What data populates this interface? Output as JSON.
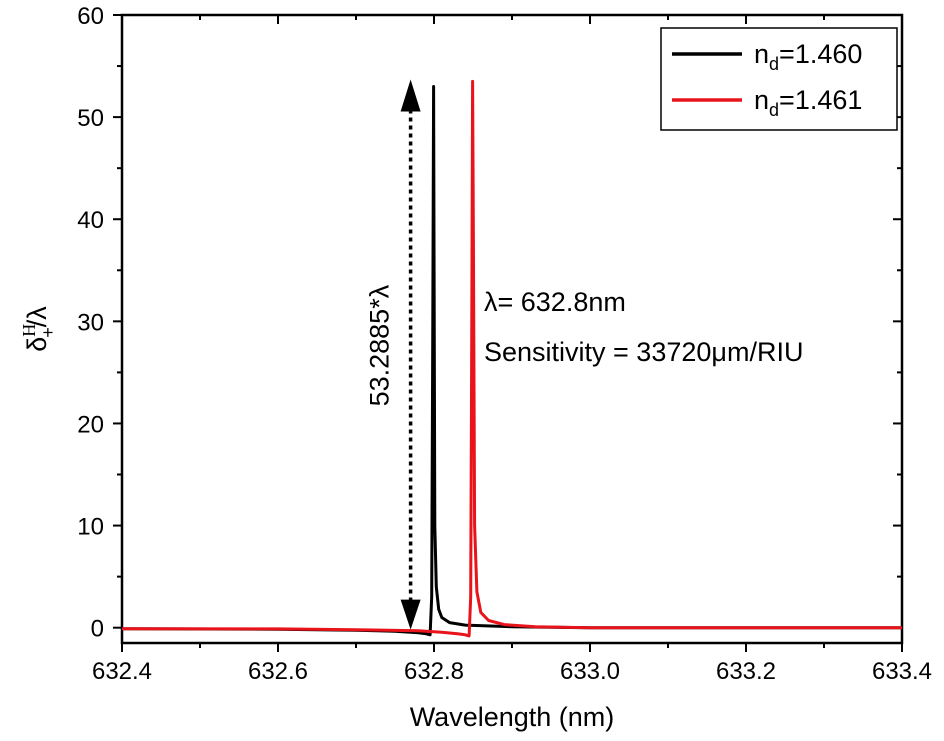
{
  "chart_data": {
    "type": "line",
    "title": "",
    "xlabel": "Wavelength (nm)",
    "ylabel": {
      "main": "δ",
      "sup": "H",
      "sub": "+",
      "suffix": "/λ"
    },
    "xlim": [
      632.4,
      633.4
    ],
    "ylim": [
      -1.5,
      60
    ],
    "xticks": [
      632.4,
      632.6,
      632.8,
      633.0,
      633.2,
      633.4
    ],
    "xtick_labels": [
      "632.4",
      "632.6",
      "632.8",
      "633.0",
      "633.2",
      "633.4"
    ],
    "yticks": [
      0,
      10,
      20,
      30,
      40,
      50,
      60
    ],
    "ytick_labels": [
      "0",
      "10",
      "20",
      "30",
      "40",
      "50",
      "60"
    ],
    "grid": false,
    "legend_position": "top-right",
    "series": [
      {
        "name": "n_d=1.460",
        "legend": {
          "base": "n",
          "sub": "d",
          "rest": "=1.460"
        },
        "color": "#000000",
        "x": [
          632.4,
          632.6,
          632.7,
          632.75,
          632.78,
          632.79,
          632.795,
          632.797,
          632.7985,
          632.7995,
          632.8,
          632.801,
          632.803,
          632.806,
          632.81,
          632.82,
          632.84,
          632.9,
          633.0,
          633.2,
          633.4
        ],
        "y": [
          -0.1,
          -0.15,
          -0.25,
          -0.35,
          -0.5,
          -0.6,
          -0.7,
          3.0,
          30.0,
          53.0,
          38.0,
          10.0,
          4.0,
          1.8,
          1.0,
          0.5,
          0.25,
          0.1,
          0.0,
          0.0,
          0.0
        ]
      },
      {
        "name": "n_d=1.461",
        "legend": {
          "base": "n",
          "sub": "d",
          "rest": "=1.461"
        },
        "color": "#e8131b",
        "x": [
          632.4,
          632.6,
          632.7,
          632.78,
          632.81,
          632.83,
          632.84,
          632.845,
          632.847,
          632.8485,
          632.8495,
          632.8505,
          632.852,
          632.855,
          632.86,
          632.87,
          632.89,
          632.93,
          633.0,
          633.2,
          633.4
        ],
        "y": [
          -0.1,
          -0.12,
          -0.2,
          -0.3,
          -0.45,
          -0.6,
          -0.7,
          -0.8,
          3.0,
          30.0,
          53.5,
          38.0,
          10.0,
          3.5,
          1.5,
          0.7,
          0.3,
          0.1,
          0.0,
          0.0,
          0.0
        ]
      }
    ],
    "annotations": {
      "arrow": {
        "x": 632.77,
        "y_top": 53.2885,
        "y_bottom": 0,
        "style": "dotted double arrow"
      },
      "arrow_label": "53.2885*λ",
      "wavelength_label": "λ= 632.8nm",
      "sensitivity_label": "Sensitivity = 33720μm/RIU"
    }
  }
}
